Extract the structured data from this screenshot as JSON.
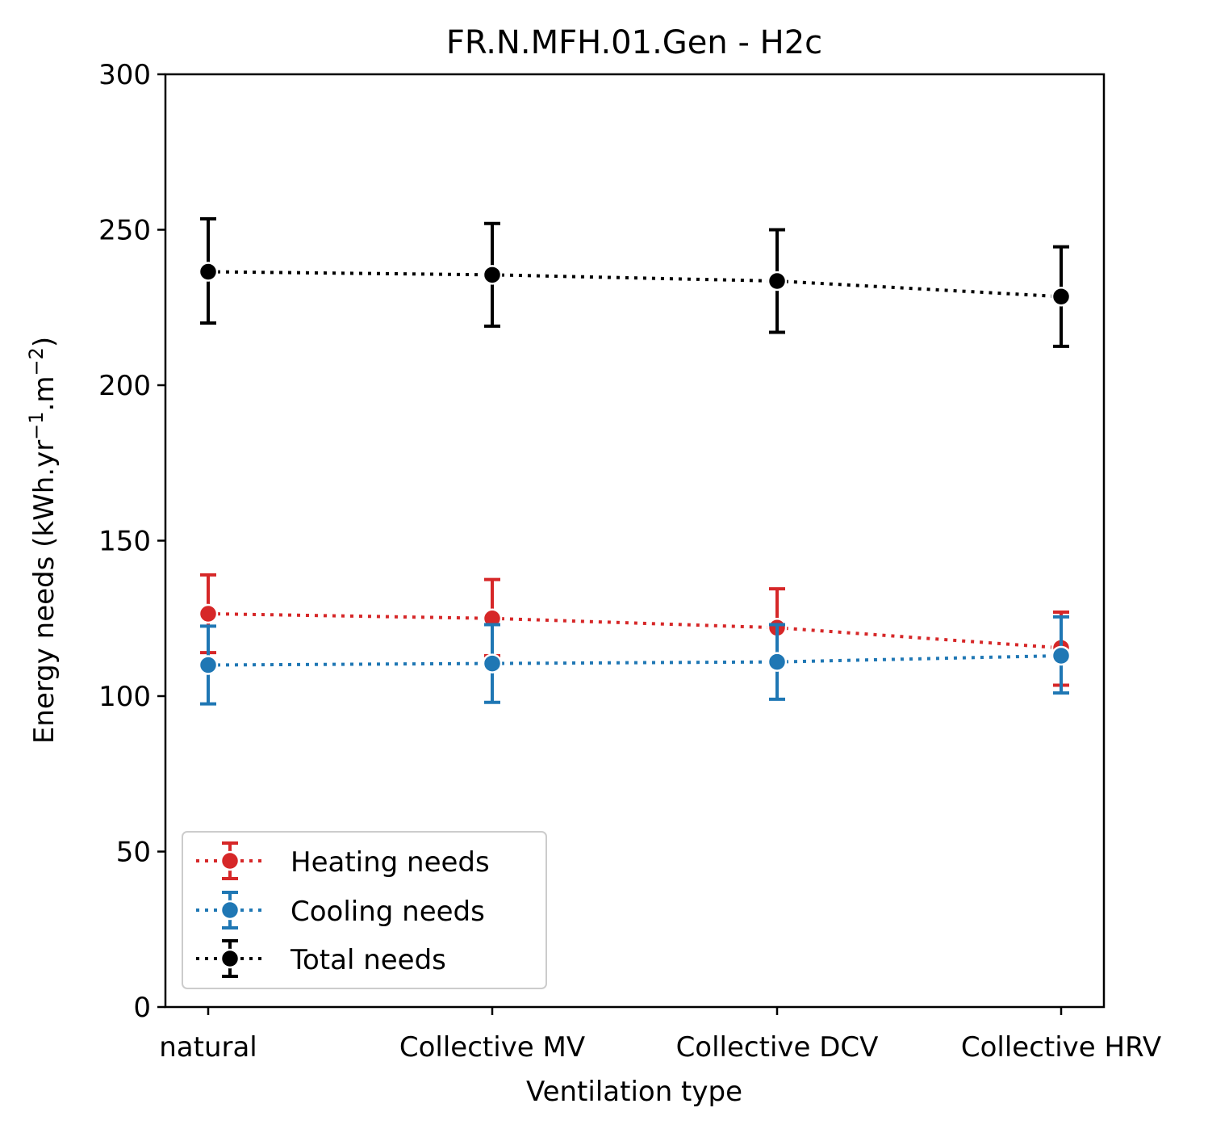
{
  "chart_data": {
    "type": "line",
    "title": "FR.N.MFH.01.Gen - H2c",
    "xlabel": "Ventilation type",
    "ylabel_text": "Energy needs (kWh.yr",
    "ylabel_sup1": "−1",
    "ylabel_mid": ".m",
    "ylabel_sup2": "−2",
    "ylabel_end": ")",
    "categories": [
      "natural",
      "Collective MV",
      "Collective DCV",
      "Collective HRV"
    ],
    "ylim": [
      0,
      300
    ],
    "yticks": [
      "0",
      "50",
      "100",
      "150",
      "200",
      "250",
      "300"
    ],
    "yticks_values": [
      0,
      50,
      100,
      150,
      200,
      250,
      300
    ],
    "grid": false,
    "legend_position": "lower-left",
    "series": [
      {
        "name": "Heating needs",
        "color": "#d62728",
        "values": [
          126.5,
          125,
          122,
          115.5
        ],
        "err_low": [
          114,
          113,
          110,
          103.5
        ],
        "err_high": [
          139,
          137.5,
          134.5,
          127
        ]
      },
      {
        "name": "Cooling needs",
        "color": "#1f77b4",
        "values": [
          110,
          110.5,
          111,
          113
        ],
        "err_low": [
          97.5,
          98,
          99,
          101
        ],
        "err_high": [
          122.5,
          123,
          123,
          125.5
        ]
      },
      {
        "name": "Total needs",
        "color": "#000000",
        "values": [
          236.5,
          235.5,
          233.5,
          228.5
        ],
        "err_low": [
          220,
          219,
          217,
          212.5
        ],
        "err_high": [
          253.5,
          252,
          250,
          244.5
        ]
      }
    ]
  }
}
